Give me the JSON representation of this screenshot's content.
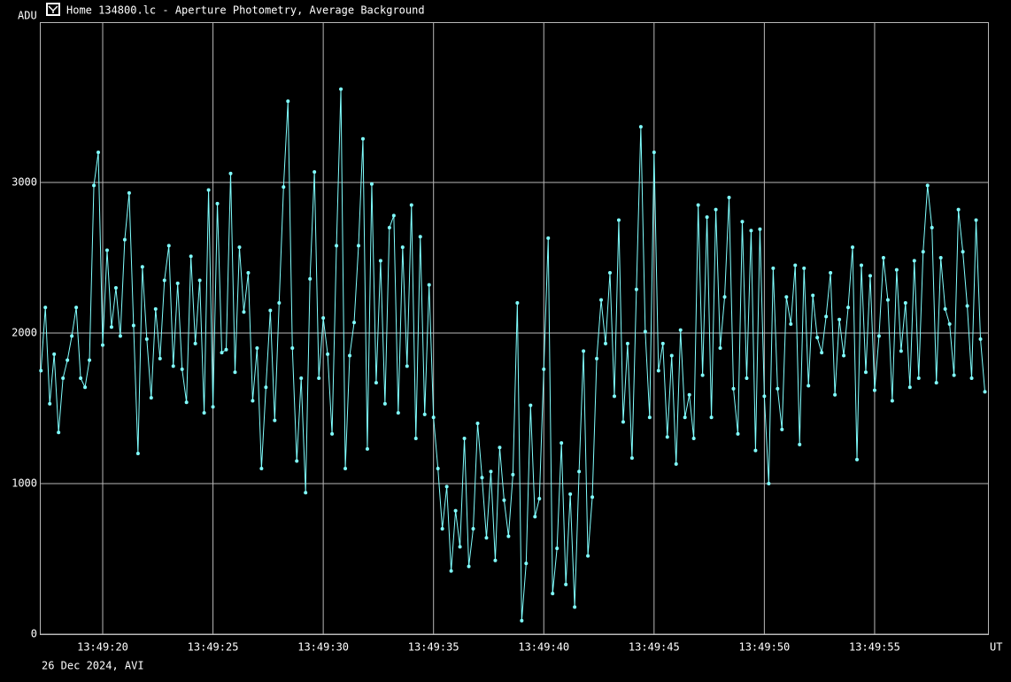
{
  "chart_data": {
    "type": "line",
    "title": "Home 134800.lc - Aperture Photometry, Average Background",
    "y_label": "ADU",
    "x_label": "UT",
    "footer": "26 Dec 2024, AVI",
    "color": "#80ffff",
    "grid": true,
    "xlim": [
      17.15,
      60.14
    ],
    "ylim": [
      0,
      4065
    ],
    "yticks": [
      0,
      1000,
      2000,
      3000
    ],
    "xticks": [
      {
        "value": 20,
        "label": "13:49:20"
      },
      {
        "value": 25,
        "label": "13:49:25"
      },
      {
        "value": 30,
        "label": "13:49:30"
      },
      {
        "value": 35,
        "label": "13:49:35"
      },
      {
        "value": 40,
        "label": "13:49:40"
      },
      {
        "value": 45,
        "label": "13:49:45"
      },
      {
        "value": 50,
        "label": "13:49:50"
      },
      {
        "value": 55,
        "label": "13:49:55"
      }
    ],
    "x": [
      17.2,
      17.4,
      17.6,
      17.8,
      18,
      18.2,
      18.4,
      18.6,
      18.8,
      19,
      19.2,
      19.4,
      19.6,
      19.8,
      20,
      20.2,
      20.4,
      20.6,
      20.8,
      21,
      21.2,
      21.4,
      21.6,
      21.8,
      22,
      22.2,
      22.4,
      22.6,
      22.8,
      23,
      23.2,
      23.4,
      23.6,
      23.8,
      24,
      24.2,
      24.4,
      24.6,
      24.8,
      25,
      25.2,
      25.4,
      25.6,
      25.8,
      26,
      26.2,
      26.4,
      26.6,
      26.8,
      27,
      27.2,
      27.4,
      27.6,
      27.8,
      28,
      28.2,
      28.4,
      28.6,
      28.8,
      29,
      29.2,
      29.4,
      29.6,
      29.8,
      30,
      30.2,
      30.4,
      30.6,
      30.8,
      31,
      31.2,
      31.4,
      31.6,
      31.8,
      32,
      32.2,
      32.4,
      32.6,
      32.8,
      33,
      33.2,
      33.4,
      33.6,
      33.8,
      34,
      34.2,
      34.4,
      34.6,
      34.8,
      35,
      35.2,
      35.4,
      35.6,
      35.8,
      36,
      36.2,
      36.4,
      36.6,
      36.8,
      37,
      37.2,
      37.4,
      37.6,
      37.8,
      38,
      38.2,
      38.4,
      38.6,
      38.8,
      39,
      39.2,
      39.4,
      39.6,
      39.8,
      40,
      40.2,
      40.4,
      40.6,
      40.8,
      41,
      41.2,
      41.4,
      41.6,
      41.8,
      42,
      42.2,
      42.4,
      42.6,
      42.8,
      43,
      43.2,
      43.4,
      43.6,
      43.8,
      44,
      44.2,
      44.4,
      44.6,
      44.8,
      45,
      45.2,
      45.4,
      45.6,
      45.8,
      46,
      46.2,
      46.4,
      46.6,
      46.8,
      47,
      47.2,
      47.4,
      47.6,
      47.8,
      48,
      48.2,
      48.4,
      48.6,
      48.8,
      49,
      49.2,
      49.4,
      49.6,
      49.8,
      50,
      50.2,
      50.4,
      50.6,
      50.8,
      51,
      51.2,
      51.4,
      51.6,
      51.8,
      52,
      52.2,
      52.4,
      52.6,
      52.8,
      53,
      53.2,
      53.4,
      53.6,
      53.8,
      54,
      54.2,
      54.4,
      54.6,
      54.8,
      55,
      55.2,
      55.4,
      55.6,
      55.8,
      56,
      56.2,
      56.4,
      56.6,
      56.8,
      57,
      57.2,
      57.4,
      57.6,
      57.8,
      58,
      58.2,
      58.4,
      58.6,
      58.8,
      59,
      59.2,
      59.4,
      59.6,
      59.8,
      60
    ],
    "values": [
      1750,
      2170,
      1530,
      1860,
      1340,
      1700,
      1820,
      1980,
      2170,
      1700,
      1640,
      1820,
      2980,
      3200,
      1920,
      2550,
      2040,
      2300,
      1980,
      2620,
      2930,
      2050,
      1200,
      2440,
      1960,
      1570,
      2160,
      1830,
      2350,
      2580,
      1780,
      2330,
      1760,
      1540,
      2510,
      1930,
      2350,
      1470,
      2950,
      1510,
      2860,
      1870,
      1890,
      3060,
      1740,
      2570,
      2140,
      2400,
      1550,
      1900,
      1100,
      1640,
      2150,
      1420,
      2200,
      2970,
      3540,
      1900,
      1150,
      1700,
      940,
      2360,
      3070,
      1700,
      2100,
      1860,
      1330,
      2580,
      3620,
      1100,
      1850,
      2070,
      2580,
      3290,
      1230,
      2990,
      1670,
      2480,
      1530,
      2700,
      2780,
      1470,
      2570,
      1780,
      2850,
      1300,
      2640,
      1460,
      2320,
      1440,
      1100,
      700,
      980,
      420,
      820,
      580,
      1300,
      450,
      700,
      1400,
      1040,
      640,
      1080,
      490,
      1240,
      890,
      650,
      1060,
      2200,
      90,
      470,
      1520,
      780,
      900,
      1760,
      2630,
      270,
      570,
      1270,
      330,
      930,
      180,
      1080,
      1880,
      520,
      910,
      1830,
      2220,
      1930,
      2400,
      1580,
      2750,
      1410,
      1930,
      1170,
      2290,
      3370,
      2010,
      1440,
      3200,
      1750,
      1930,
      1310,
      1850,
      1130,
      2020,
      1440,
      1590,
      1300,
      2850,
      1720,
      2770,
      1440,
      2820,
      1900,
      2240,
      2900,
      1630,
      1330,
      2740,
      1700,
      2680,
      1220,
      2690,
      1580,
      1000,
      2430,
      1630,
      1360,
      2240,
      2060,
      2450,
      1260,
      2430,
      1650,
      2250,
      1970,
      1870,
      2110,
      2400,
      1590,
      2090,
      1850,
      2170,
      2570,
      1160,
      2450,
      1740,
      2380,
      1620,
      1980,
      2500,
      2220,
      1550,
      2420,
      1880,
      2200,
      1640,
      2480,
      1700,
      2540,
      2980,
      2700,
      1670,
      2500,
      2160,
      2060,
      1720,
      2820,
      2540,
      2180,
      1700,
      2750,
      1960,
      1610
    ]
  }
}
